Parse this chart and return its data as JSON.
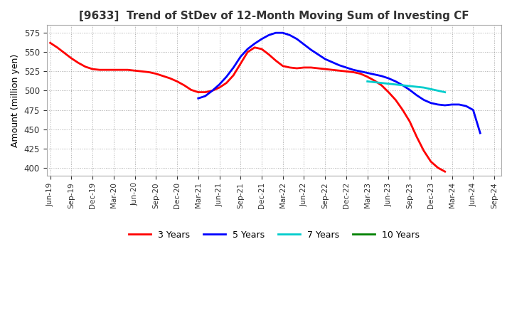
{
  "title": "[9633]  Trend of StDev of 12-Month Moving Sum of Investing CF",
  "ylabel": "Amount (million yen)",
  "ylim": [
    390,
    585
  ],
  "yticks": [
    400,
    425,
    450,
    475,
    500,
    525,
    550,
    575
  ],
  "background_color": "#ffffff",
  "grid_color": "#aaaaaa",
  "xtick_labels": [
    "Jun-19",
    "Sep-19",
    "Dec-19",
    "Mar-20",
    "Jun-20",
    "Sep-20",
    "Dec-20",
    "Mar-21",
    "Jun-21",
    "Sep-21",
    "Dec-21",
    "Mar-22",
    "Jun-22",
    "Sep-22",
    "Dec-22",
    "Mar-23",
    "Jun-23",
    "Sep-23",
    "Dec-23",
    "Mar-24",
    "Jun-24",
    "Sep-24"
  ],
  "series_3y": {
    "color": "#ff0000",
    "label": "3 Years",
    "x": [
      0,
      1,
      2,
      3,
      4,
      5,
      6,
      7,
      8,
      9,
      10,
      11,
      12,
      13,
      14,
      15,
      16,
      17,
      18,
      19,
      20,
      21,
      22,
      23,
      24,
      25,
      26,
      27,
      28,
      29,
      30,
      31,
      32,
      33,
      34,
      35,
      36,
      37,
      38,
      39,
      40,
      41,
      42,
      43,
      44,
      45,
      46,
      47,
      48,
      49,
      50,
      51,
      52,
      53,
      54,
      55,
      56
    ],
    "y": [
      562,
      556,
      549,
      542,
      536,
      531,
      528,
      527,
      527,
      527,
      527,
      527,
      526,
      525,
      524,
      522,
      519,
      516,
      512,
      507,
      501,
      498,
      498,
      500,
      504,
      510,
      520,
      535,
      550,
      556,
      554,
      547,
      539,
      532,
      530,
      529,
      530,
      530,
      529,
      528,
      527,
      526,
      525,
      524,
      522,
      518,
      513,
      507,
      498,
      488,
      475,
      460,
      440,
      422,
      408,
      400,
      395
    ]
  },
  "series_5y": {
    "color": "#0000ff",
    "label": "5 Years",
    "x": [
      21,
      22,
      23,
      24,
      25,
      26,
      27,
      28,
      29,
      30,
      31,
      32,
      33,
      34,
      35,
      36,
      37,
      38,
      39,
      40,
      41,
      42,
      43,
      44,
      45,
      46,
      47,
      48,
      49,
      50,
      51,
      52,
      53,
      54,
      55,
      56,
      57,
      58,
      59,
      60,
      61
    ],
    "y": [
      490,
      493,
      500,
      508,
      518,
      530,
      544,
      554,
      561,
      567,
      572,
      575,
      575,
      572,
      567,
      560,
      553,
      547,
      541,
      537,
      533,
      530,
      527,
      525,
      523,
      521,
      519,
      516,
      512,
      507,
      501,
      494,
      488,
      484,
      482,
      481,
      482,
      482,
      480,
      475,
      445
    ]
  },
  "series_7y": {
    "color": "#00cccc",
    "label": "7 Years",
    "x": [
      45,
      46,
      47,
      48,
      49,
      50,
      51,
      52,
      53,
      54,
      55,
      56
    ],
    "y": [
      512,
      511,
      510,
      509,
      508,
      507,
      506,
      505,
      504,
      502,
      500,
      498
    ]
  },
  "series_10y": {
    "color": "#008000",
    "label": "10 Years",
    "x": [],
    "y": []
  }
}
